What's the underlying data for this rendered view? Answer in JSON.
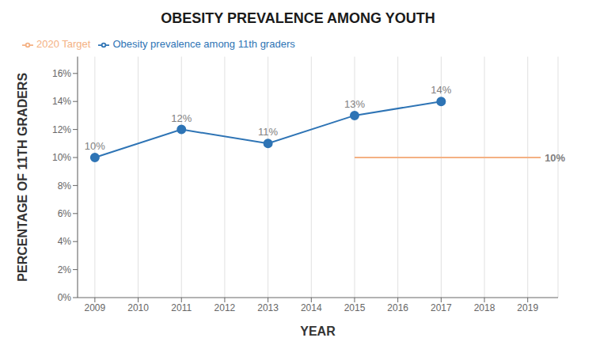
{
  "chart_data": {
    "type": "line",
    "title": "OBESITY PREVALENCE AMONG YOUTH",
    "x_label": "YEAR",
    "y_label": "PERCENTAGE OF 11TH GRADERS",
    "x": [
      2009,
      2011,
      2013,
      2015,
      2017
    ],
    "series": [
      {
        "name": "Obesity prevalence among 11th graders",
        "color": "#2E74B5",
        "marker": "circle",
        "values": [
          0.1,
          0.12,
          0.11,
          0.13,
          0.14
        ],
        "value_labels": [
          "10%",
          "12%",
          "11%",
          "13%",
          "14%"
        ]
      },
      {
        "name": "2020 Target",
        "color": "#F4B183",
        "x": [
          2015,
          2019.3
        ],
        "values": [
          0.1,
          0.1
        ]
      }
    ],
    "annotations": [
      {
        "text": "10%",
        "x": 2019.3,
        "y": 0.1
      }
    ],
    "data_labels": true,
    "xlim": [
      2008.6,
      2019.7
    ],
    "xticks": [
      2009,
      2010,
      2011,
      2012,
      2013,
      2014,
      2015,
      2016,
      2017,
      2018,
      2019
    ],
    "ylim": [
      0,
      0.172
    ],
    "yticks": [
      {
        "value": 0.0,
        "label": "0%"
      },
      {
        "value": 0.02,
        "label": "2%"
      },
      {
        "value": 0.04,
        "label": "4%"
      },
      {
        "value": 0.06,
        "label": "6%"
      },
      {
        "value": 0.08,
        "label": "8%"
      },
      {
        "value": 0.1,
        "label": "10%"
      },
      {
        "value": 0.12,
        "label": "12%"
      },
      {
        "value": 0.14,
        "label": "14%"
      },
      {
        "value": 0.16,
        "label": "16%"
      }
    ],
    "grid": "x",
    "legend": "upper left"
  }
}
